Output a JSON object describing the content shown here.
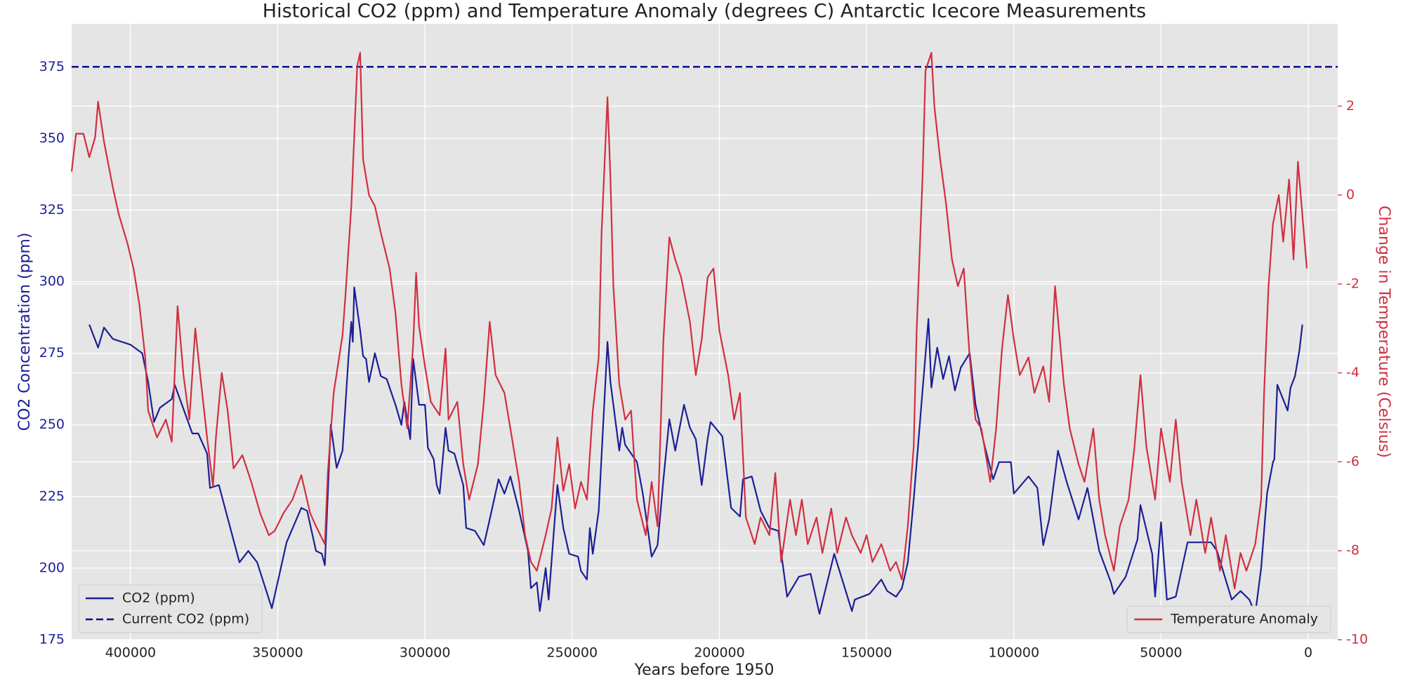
{
  "chart_data": {
    "type": "line",
    "title": "Historical CO2 (ppm) and Temperature Anomaly (degrees C) Antarctic Icecore Measurements",
    "xlabel": "Years before 1950",
    "ylabel": "CO2 Concentration (ppm)",
    "y2label": "Change in Temperature (Celsius)",
    "xlim": [
      420000,
      -10000
    ],
    "xticks": [
      400000,
      350000,
      300000,
      250000,
      200000,
      150000,
      100000,
      50000,
      0
    ],
    "ylim": [
      175,
      390
    ],
    "yticks": [
      175,
      200,
      225,
      250,
      275,
      300,
      325,
      350,
      375
    ],
    "y2lim": [
      -10,
      3.85
    ],
    "y2ticks": [
      -10,
      -8,
      -6,
      -4,
      -2,
      0,
      2
    ],
    "grid": true,
    "series": [
      {
        "name": "CO2 (ppm)",
        "color": "#1b1f96",
        "legend": "lower left",
        "x": [
          414000,
          411000,
          409000,
          406000,
          400000,
          396000,
          394000,
          392000,
          390000,
          386000,
          385000,
          379000,
          377000,
          374000,
          373000,
          370000,
          363000,
          360000,
          357000,
          352000,
          347000,
          342000,
          340000,
          337000,
          335000,
          334000,
          332000,
          330000,
          328000,
          326000,
          325000,
          324500,
          324000,
          322000,
          321000,
          320000,
          319000,
          317000,
          315000,
          313000,
          310000,
          308000,
          307000,
          305000,
          304000,
          302000,
          300000,
          299000,
          297000,
          296000,
          295000,
          293000,
          292000,
          290000,
          287000,
          286000,
          283000,
          280000,
          278000,
          275000,
          273000,
          271000,
          268000,
          265000,
          264000,
          262000,
          261000,
          259000,
          258000,
          255000,
          253000,
          251000,
          248000,
          247000,
          245000,
          244000,
          243000,
          241000,
          239000,
          238000,
          237000,
          234000,
          233000,
          232000,
          228000,
          226000,
          223000,
          221000,
          219000,
          217000,
          215000,
          212000,
          210000,
          208000,
          206000,
          204000,
          203000,
          199000,
          196000,
          193000,
          192000,
          189000,
          186000,
          183000,
          180000,
          177000,
          173000,
          169000,
          166000,
          161000,
          155000,
          154000,
          149000,
          145000,
          143000,
          140000,
          138000,
          136000,
          134000,
          131000,
          129000,
          128000,
          126000,
          124000,
          122000,
          120000,
          118000,
          115000,
          113000,
          110000,
          107000,
          105000,
          101000,
          100000,
          95000,
          92000,
          90000,
          88000,
          85000,
          82000,
          78000,
          75000,
          71000,
          67000,
          66000,
          62000,
          58000,
          57000,
          53000,
          52000,
          50000,
          48000,
          45000,
          41000,
          33000,
          31000,
          26000,
          23000,
          20000,
          18000,
          16000,
          14000,
          12000,
          11500,
          10500,
          7000,
          6000,
          4500,
          3000,
          2000
        ],
        "values": [
          285,
          277,
          284,
          280,
          278,
          275,
          265,
          251,
          256,
          259,
          264,
          247,
          247,
          240,
          228,
          229,
          202,
          206,
          202,
          186,
          209,
          221,
          220,
          206,
          205,
          201,
          250,
          235,
          241,
          273,
          286,
          279,
          298,
          283,
          274,
          273,
          265,
          275,
          267,
          266,
          257,
          250,
          258,
          245,
          273,
          257,
          257,
          242,
          238,
          229,
          226,
          249,
          241,
          240,
          229,
          214,
          213,
          208,
          217,
          231,
          226,
          232,
          220,
          206,
          193,
          195,
          185,
          200,
          189,
          229,
          214,
          205,
          204,
          199,
          196,
          214,
          205,
          220,
          259,
          279,
          265,
          241,
          249,
          243,
          237,
          226,
          204,
          208,
          231,
          252,
          241,
          257,
          249,
          245,
          229,
          245,
          251,
          246,
          221,
          218,
          231,
          232,
          220,
          214,
          213,
          190,
          197,
          198,
          184,
          205,
          185,
          189,
          191,
          196,
          192,
          190,
          193,
          202,
          224,
          262,
          287,
          263,
          277,
          266,
          274,
          262,
          270,
          275,
          257,
          243,
          231,
          237,
          237,
          226,
          232,
          228,
          208,
          217,
          241,
          230,
          217,
          228,
          206,
          195,
          191,
          197,
          210,
          222,
          205,
          190,
          216,
          189,
          190,
          209,
          209,
          206,
          189,
          192,
          189,
          184,
          200,
          226,
          237,
          238,
          264,
          255,
          263,
          267,
          276,
          285
        ]
      },
      {
        "name": "Temperature Anomaly",
        "color": "#d12f40",
        "axis": "y2",
        "legend": "lower right",
        "x": [
          420000,
          418500,
          416000,
          414000,
          412000,
          411000,
          409000,
          406000,
          404000,
          401000,
          399000,
          397000,
          395000,
          394000,
          391000,
          388000,
          386000,
          384500,
          384000,
          382000,
          380000,
          378000,
          376000,
          374000,
          372000,
          371000,
          369000,
          367000,
          365000,
          362000,
          359000,
          356000,
          353000,
          351000,
          348000,
          345000,
          342000,
          339000,
          337000,
          334000,
          333000,
          331000,
          328000,
          327000,
          325000,
          323000,
          322000,
          321000,
          319000,
          317000,
          315000,
          312000,
          310000,
          308000,
          306000,
          304000,
          303000,
          302000,
          300000,
          298000,
          295000,
          293000,
          292000,
          289000,
          287000,
          285000,
          282000,
          280000,
          278000,
          276000,
          273000,
          271000,
          268000,
          266000,
          264000,
          262000,
          259000,
          257000,
          255000,
          253000,
          251000,
          249000,
          247000,
          245000,
          243000,
          241000,
          240000,
          238000,
          237000,
          236000,
          234000,
          232000,
          230000,
          228000,
          225000,
          223000,
          221000,
          219000,
          217000,
          215000,
          213000,
          210000,
          208000,
          206000,
          204000,
          202000,
          200000,
          197000,
          195000,
          193000,
          191000,
          188000,
          186000,
          183000,
          181000,
          179000,
          176000,
          174000,
          172000,
          170000,
          167000,
          165000,
          162000,
          160000,
          157000,
          155000,
          152000,
          150000,
          148000,
          145000,
          142000,
          140000,
          138000,
          136000,
          134000,
          133000,
          131000,
          130000,
          128000,
          127000,
          125000,
          123000,
          121000,
          119000,
          117000,
          115000,
          113000,
          111000,
          108000,
          106000,
          104000,
          102000,
          100000,
          98000,
          95000,
          93000,
          90000,
          88000,
          86000,
          83000,
          81000,
          78000,
          76000,
          73000,
          71000,
          69000,
          66000,
          64000,
          61000,
          59000,
          57000,
          55000,
          52000,
          50000,
          47000,
          45000,
          43000,
          40000,
          38000,
          35000,
          33000,
          30000,
          28000,
          25000,
          23000,
          21000,
          18000,
          16000,
          15000,
          13500,
          12000,
          10000,
          8500,
          6500,
          5000,
          3500,
          2000,
          500
        ],
        "values": [
          0.53,
          1.38,
          1.38,
          0.85,
          1.3,
          2.1,
          1.2,
          0.17,
          -0.43,
          -1.1,
          -1.65,
          -2.45,
          -3.65,
          -4.85,
          -5.45,
          -5.05,
          -5.55,
          -3.25,
          -2.5,
          -4.05,
          -5.05,
          -3,
          -4.25,
          -5.45,
          -6.55,
          -5.45,
          -4,
          -4.85,
          -6.15,
          -5.85,
          -6.45,
          -7.15,
          -7.65,
          -7.55,
          -7.15,
          -6.85,
          -6.3,
          -7.15,
          -7.45,
          -7.85,
          -6.25,
          -4.45,
          -3.15,
          -2.25,
          -0.25,
          2.9,
          3.2,
          0.8,
          0,
          -0.25,
          -0.85,
          -1.65,
          -2.65,
          -4.25,
          -5.25,
          -3.35,
          -1.75,
          -2.95,
          -3.85,
          -4.65,
          -4.95,
          -3.45,
          -5.05,
          -4.65,
          -6.05,
          -6.85,
          -6.05,
          -4.65,
          -2.85,
          -4.05,
          -4.45,
          -5.25,
          -6.45,
          -7.65,
          -8.25,
          -8.45,
          -7.65,
          -7.05,
          -5.45,
          -6.65,
          -6.05,
          -7.05,
          -6.45,
          -6.85,
          -4.85,
          -3.65,
          -0.85,
          2.2,
          0.4,
          -2.05,
          -4.25,
          -5.05,
          -4.85,
          -6.85,
          -7.65,
          -6.45,
          -7.45,
          -3.25,
          -0.95,
          -1.45,
          -1.85,
          -2.85,
          -4.05,
          -3.25,
          -1.85,
          -1.65,
          -3.05,
          -4.05,
          -5.05,
          -4.45,
          -7.25,
          -7.85,
          -7.25,
          -7.65,
          -6.25,
          -8.25,
          -6.85,
          -7.65,
          -6.85,
          -7.85,
          -7.25,
          -8.05,
          -7.05,
          -8.05,
          -7.25,
          -7.65,
          -8.05,
          -7.65,
          -8.25,
          -7.85,
          -8.45,
          -8.25,
          -8.65,
          -7.45,
          -5.65,
          -3.05,
          0.4,
          2.8,
          3.2,
          2,
          0.8,
          -0.2,
          -1.45,
          -2.05,
          -1.65,
          -3.65,
          -5.05,
          -5.25,
          -6.45,
          -5.25,
          -3.45,
          -2.25,
          -3.25,
          -4.05,
          -3.65,
          -4.45,
          -3.85,
          -4.65,
          -2.05,
          -4.25,
          -5.25,
          -6.05,
          -6.45,
          -5.25,
          -6.85,
          -7.65,
          -8.45,
          -7.45,
          -6.85,
          -5.65,
          -4.05,
          -5.65,
          -6.85,
          -5.25,
          -6.45,
          -5.05,
          -6.45,
          -7.65,
          -6.85,
          -8.05,
          -7.25,
          -8.45,
          -7.65,
          -8.85,
          -8.05,
          -8.45,
          -7.85,
          -6.85,
          -4.45,
          -2.05,
          -0.65,
          0,
          -1.05,
          0.35,
          -1.45,
          0.75,
          -0.45,
          -1.65
        ]
      }
    ],
    "hlines": [
      {
        "name": "Current CO2 (ppm)",
        "value": 375,
        "color": "#0a108c",
        "style": "dashed",
        "legend": "lower left"
      }
    ]
  }
}
